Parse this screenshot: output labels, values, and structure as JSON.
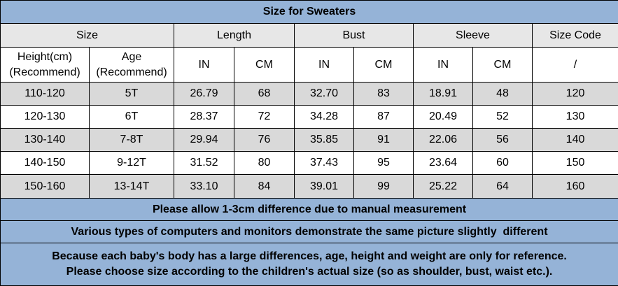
{
  "title": "Size for Sweaters",
  "header": {
    "groups": [
      "Size",
      "Length",
      "Bust",
      "Sleeve",
      "Size Code"
    ],
    "sub": [
      "Height(cm)\n(Recommend)",
      "Age\n(Recommend)",
      "IN",
      "CM",
      "IN",
      "CM",
      "IN",
      "CM",
      "/"
    ]
  },
  "rows": [
    [
      "110-120",
      "5T",
      "26.79",
      "68",
      "32.70",
      "83",
      "18.91",
      "48",
      "120"
    ],
    [
      "120-130",
      "6T",
      "28.37",
      "72",
      "34.28",
      "87",
      "20.49",
      "52",
      "130"
    ],
    [
      "130-140",
      "7-8T",
      "29.94",
      "76",
      "35.85",
      "91",
      "22.06",
      "56",
      "140"
    ],
    [
      "140-150",
      "9-12T",
      "31.52",
      "80",
      "37.43",
      "95",
      "23.64",
      "60",
      "150"
    ],
    [
      "150-160",
      "13-14T",
      "33.10",
      "84",
      "39.01",
      "99",
      "25.22",
      "64",
      "160"
    ]
  ],
  "notes": [
    "Please allow 1-3cm difference due to manual measurement",
    "Various types of computers and monitors demonstrate the same picture slightly  different",
    "Because each baby's body has a large differences, age, height and weight are only for reference.\nPlease choose size according to the children's actual size (so as shoulder, bust, waist etc.)."
  ]
}
